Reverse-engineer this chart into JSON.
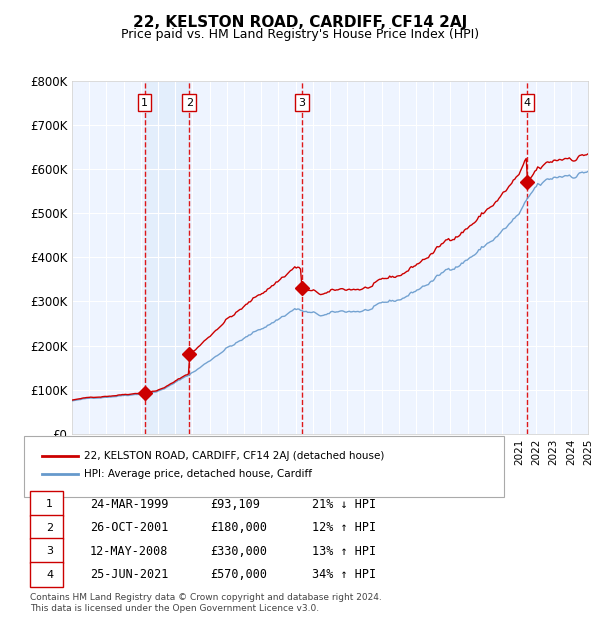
{
  "title": "22, KELSTON ROAD, CARDIFF, CF14 2AJ",
  "subtitle": "Price paid vs. HM Land Registry's House Price Index (HPI)",
  "x_start_year": 1995,
  "x_end_year": 2025,
  "y_min": 0,
  "y_max": 800000,
  "y_ticks": [
    0,
    100000,
    200000,
    300000,
    400000,
    500000,
    600000,
    700000,
    800000
  ],
  "y_tick_labels": [
    "£0",
    "£100K",
    "£200K",
    "£300K",
    "£400K",
    "£500K",
    "£600K",
    "£700K",
    "£800K"
  ],
  "sales": [
    {
      "num": 1,
      "date": "24-MAR-1999",
      "year": 1999.22,
      "price": 93109,
      "hpi_pct": "21% ↓ HPI"
    },
    {
      "num": 2,
      "date": "26-OCT-2001",
      "year": 2001.82,
      "price": 180000,
      "hpi_pct": "12% ↑ HPI"
    },
    {
      "num": 3,
      "date": "12-MAY-2008",
      "year": 2008.36,
      "price": 330000,
      "hpi_pct": "13% ↑ HPI"
    },
    {
      "num": 4,
      "date": "25-JUN-2021",
      "year": 2021.48,
      "price": 570000,
      "hpi_pct": "34% ↑ HPI"
    }
  ],
  "legend_line1": "22, KELSTON ROAD, CARDIFF, CF14 2AJ (detached house)",
  "legend_line2": "HPI: Average price, detached house, Cardiff",
  "footnote": "Contains HM Land Registry data © Crown copyright and database right 2024.\nThis data is licensed under the Open Government Licence v3.0.",
  "line_color_red": "#cc0000",
  "line_color_blue": "#6699cc",
  "bg_color": "#ddeeff",
  "plot_bg": "#eef4ff",
  "grid_color": "#ffffff",
  "vline_color": "#dd0000",
  "marker_color": "#cc0000",
  "sale_box_bg": "#ffffff",
  "sale_box_edge": "#cc0000"
}
